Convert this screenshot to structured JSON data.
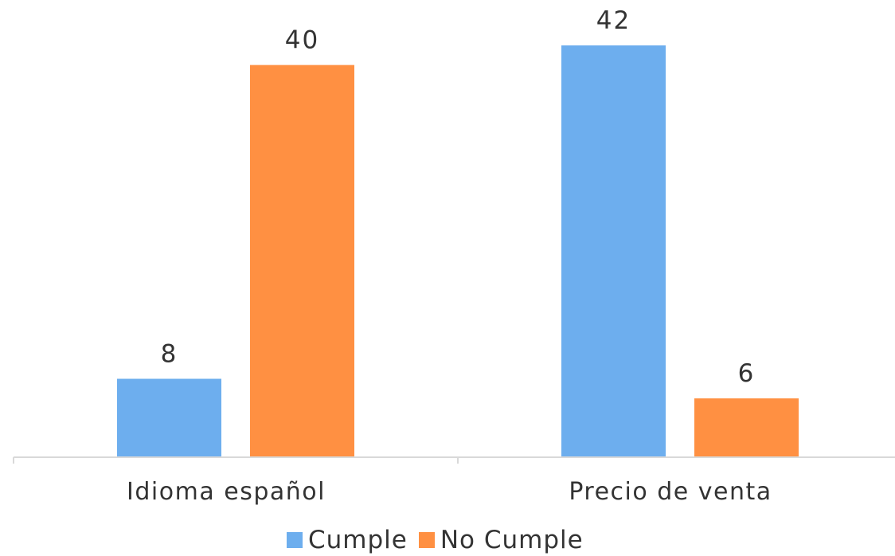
{
  "chart_data": {
    "type": "bar",
    "categories": [
      "Idioma español",
      "Precio de venta"
    ],
    "series": [
      {
        "name": "Cumple",
        "values": [
          8,
          42
        ],
        "color": "#6DAEEE"
      },
      {
        "name": "No Cumple",
        "values": [
          40,
          6
        ],
        "color": "#FF9042"
      }
    ],
    "ylim": [
      0,
      42
    ],
    "grid": false,
    "show_y_axis": false,
    "legend_position": "bottom",
    "data_labels": true
  }
}
